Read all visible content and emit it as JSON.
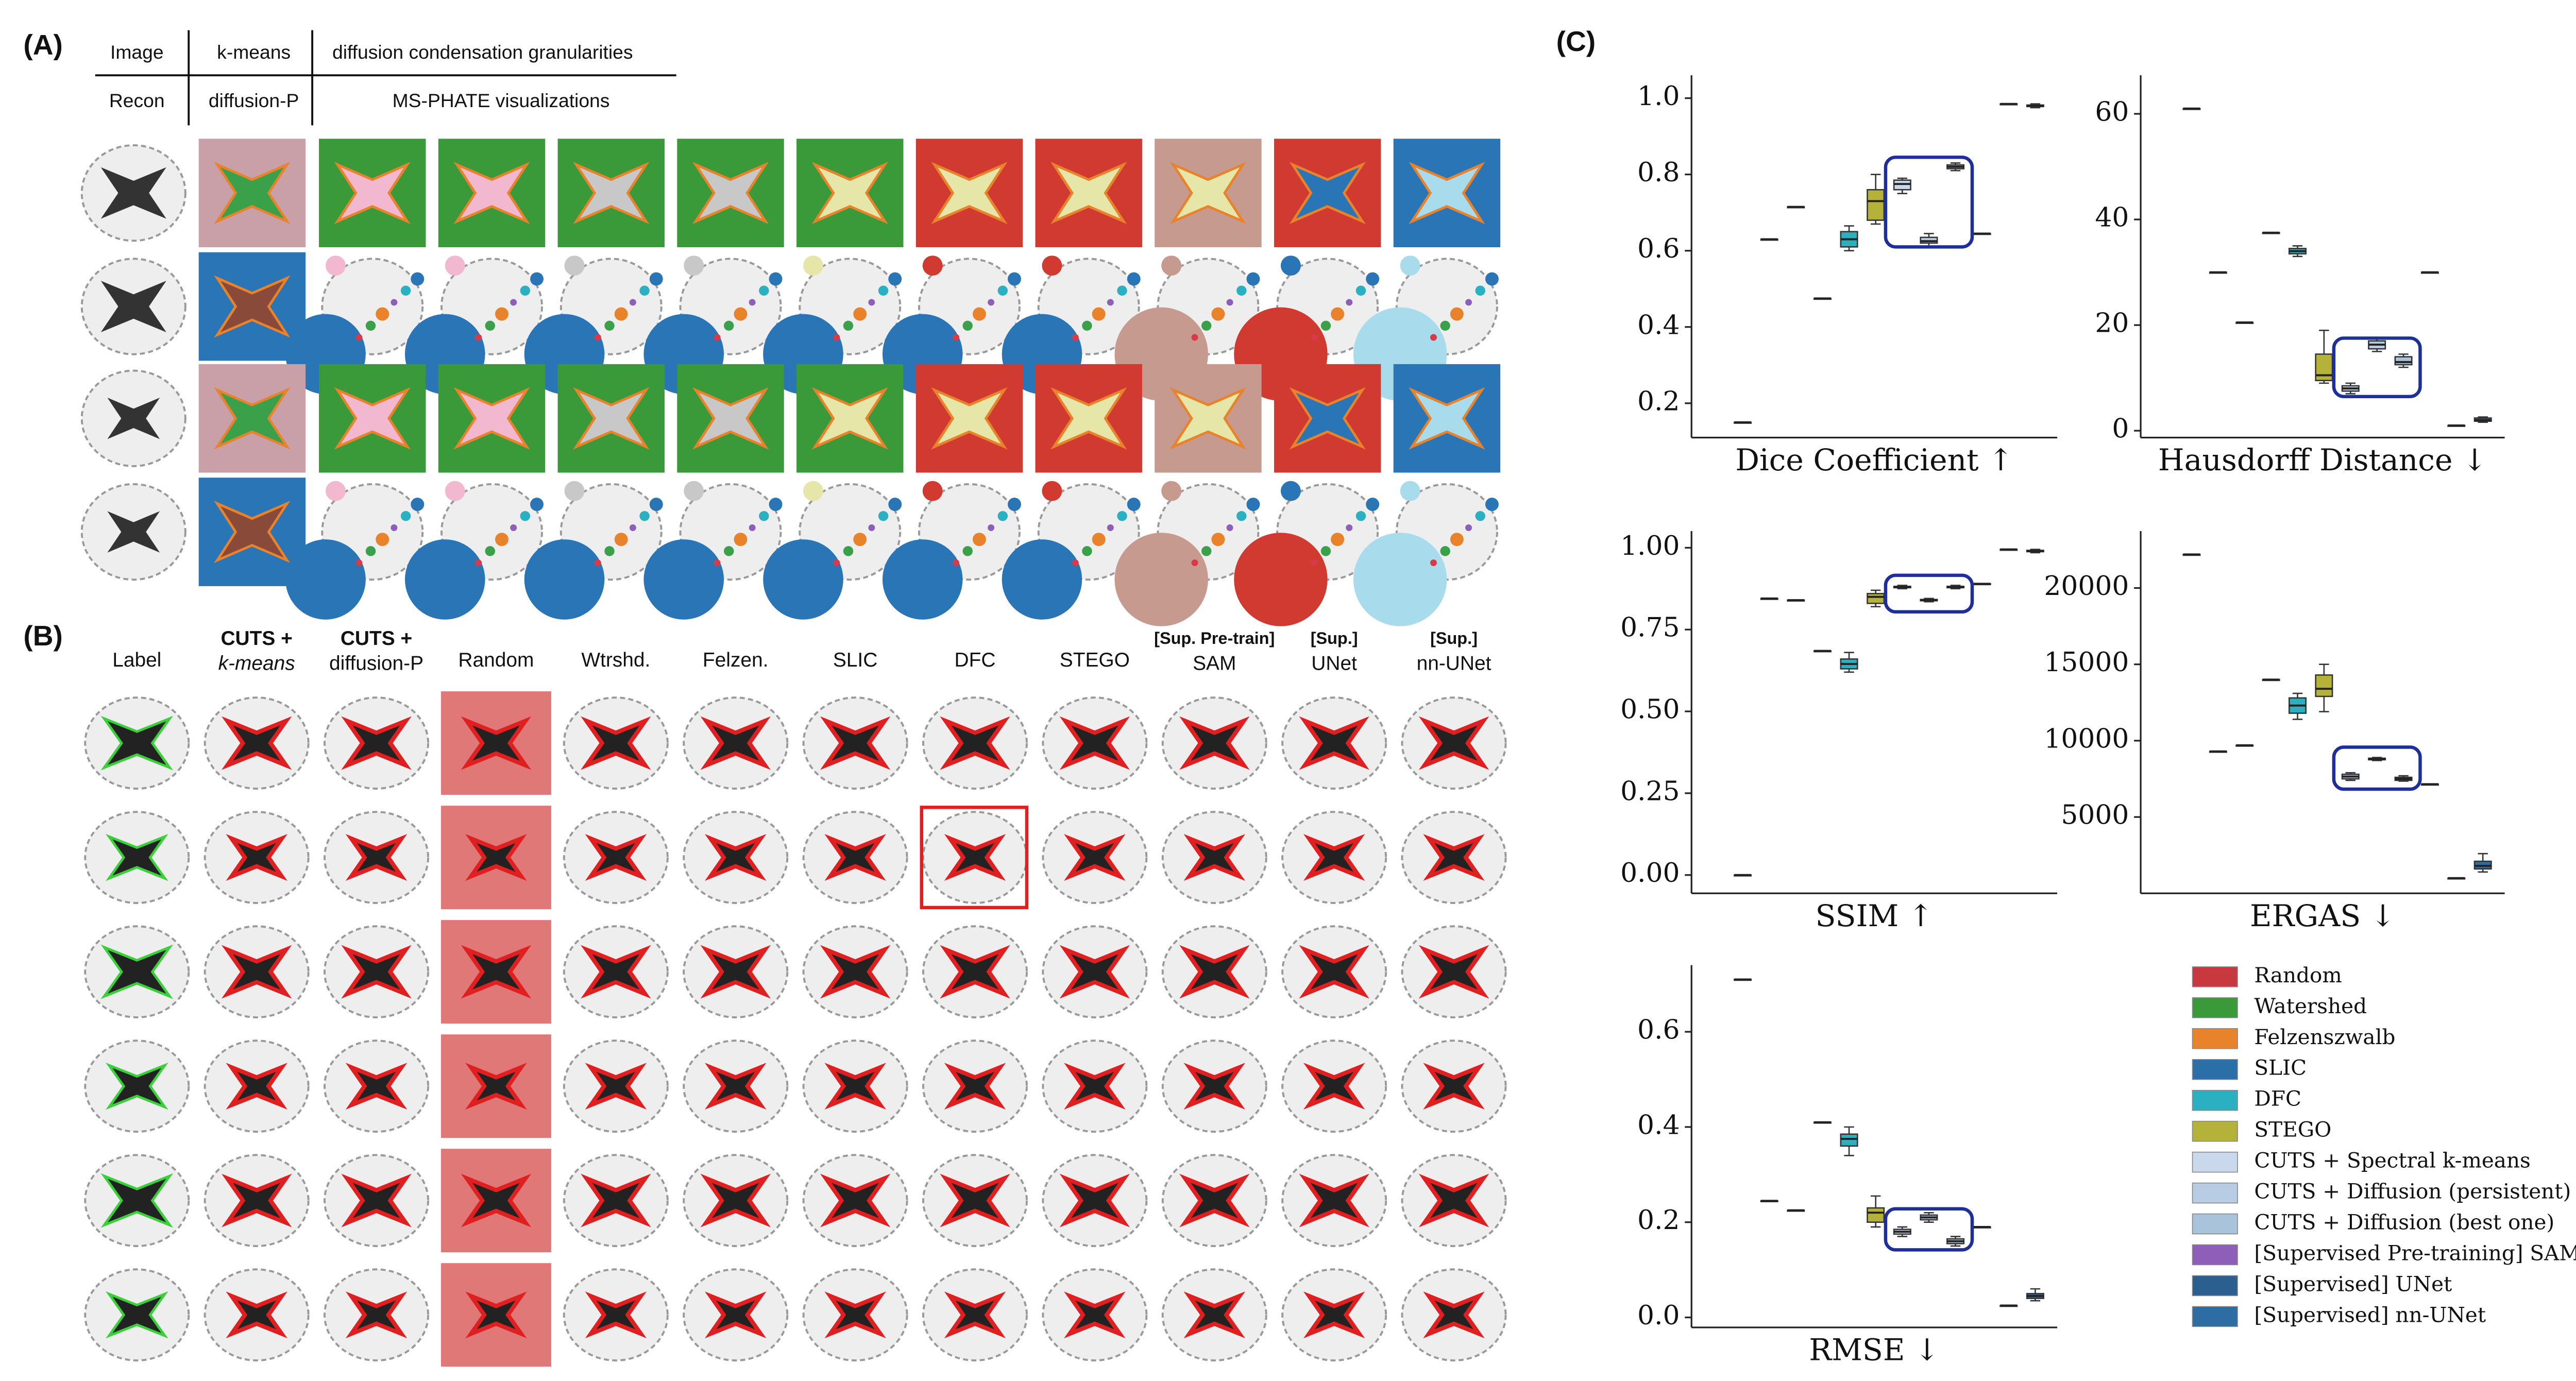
{
  "panel_a": {
    "label": "(A)",
    "header_top": [
      "Image",
      "k-means",
      "diffusion condensation granularities"
    ],
    "header_bottom": [
      "Recon",
      "diffusion-P",
      "MS-PHATE visualizations"
    ]
  },
  "panel_b": {
    "label": "(B)",
    "columns": [
      [
        "Label"
      ],
      [
        "CUTS +",
        "k-means"
      ],
      [
        "CUTS +",
        "diffusion-P"
      ],
      [
        "Random"
      ],
      [
        "Wtrshd."
      ],
      [
        "Felzen."
      ],
      [
        "SLIC"
      ],
      [
        "DFC"
      ],
      [
        "STEGO"
      ],
      [
        "[Sup. Pre-train]",
        "SAM"
      ],
      [
        "[Sup.]",
        "UNet"
      ],
      [
        "[Sup.]",
        "nn-UNet"
      ]
    ]
  },
  "panel_c": {
    "label": "(C)"
  },
  "legend": {
    "names": [
      "Random",
      "Watershed",
      "Felzenszwalb",
      "SLIC",
      "DFC",
      "STEGO",
      "CUTS + Spectral k-means",
      "CUTS + Diffusion (persistent)",
      "CUTS + Diffusion (best one)",
      "[Supervised Pre-training] SAM",
      "[Supervised] UNet",
      "[Supervised] nn-UNet"
    ],
    "colors": [
      "#c8393f",
      "#3a9a3a",
      "#e8822b",
      "#2a6fa8",
      "#2ab0c0",
      "#b5b23a",
      "#c9d8ec",
      "#b8cde4",
      "#a8c3da",
      "#8e5fb8",
      "#2a5f8f",
      "#2e6da4"
    ]
  },
  "chart_data": [
    {
      "type": "box",
      "xlabel": "Dice Coefficient ↑",
      "ylim": [
        0.11,
        1.06
      ],
      "yticks": [
        0.2,
        0.4,
        0.6,
        0.8,
        {
          "value": 1.0,
          "label": "1.0"
        }
      ],
      "boxes": [
        [
          0.15,
          0.15,
          0.15,
          0.15,
          0.15
        ],
        [
          0.63,
          0.63,
          0.63,
          0.63,
          0.63
        ],
        [
          0.715,
          0.715,
          0.715,
          0.715,
          0.715
        ],
        [
          0.475,
          0.475,
          0.475,
          0.475,
          0.475
        ],
        [
          0.6,
          0.61,
          0.63,
          0.65,
          0.665
        ],
        [
          0.67,
          0.68,
          0.73,
          0.76,
          0.8
        ],
        [
          0.75,
          0.76,
          0.775,
          0.785,
          0.79
        ],
        [
          0.61,
          0.62,
          0.625,
          0.635,
          0.645
        ],
        [
          0.81,
          0.815,
          0.82,
          0.825,
          0.83
        ],
        [
          0.645,
          0.645,
          0.645,
          0.645,
          0.645
        ],
        [
          0.985,
          0.985,
          0.985,
          0.985,
          0.985
        ],
        [
          0.975,
          0.978,
          0.98,
          0.982,
          0.985
        ]
      ]
    },
    {
      "type": "box",
      "xlabel": "Hausdorff Distance ↓",
      "ylim": [
        -1.3,
        67.3
      ],
      "yticks": [
        0,
        20,
        40,
        60
      ],
      "boxes": [
        [
          61,
          61,
          61,
          61,
          61
        ],
        [
          30,
          30,
          30,
          30,
          30
        ],
        [
          20.5,
          20.5,
          20.5,
          20.5,
          20.5
        ],
        [
          37.5,
          37.5,
          37.5,
          37.5,
          37.5
        ],
        [
          33,
          33.5,
          34,
          34.5,
          35
        ],
        [
          9,
          9.5,
          10.5,
          14.5,
          19
        ],
        [
          7,
          7.5,
          8,
          8.5,
          9
        ],
        [
          15,
          15.5,
          16.3,
          17,
          17.5
        ],
        [
          12,
          12.5,
          13,
          14,
          14.5
        ],
        [
          30,
          30,
          30,
          30,
          30
        ],
        [
          1,
          1,
          1,
          1,
          1
        ],
        [
          1.6,
          1.8,
          2,
          2.4,
          2.6
        ]
      ]
    },
    {
      "type": "box",
      "xlabel": "SSIM ↑",
      "ylim": [
        -0.056,
        1.051
      ],
      "yticks": [
        {
          "value": 0,
          "label": "0.00"
        },
        0.25,
        {
          "value": 0.5,
          "label": "0.50"
        },
        0.75,
        {
          "value": 1,
          "label": "1.00"
        }
      ],
      "boxes": [
        [
          0,
          0,
          0,
          0,
          0
        ],
        [
          0.845,
          0.845,
          0.845,
          0.845,
          0.845
        ],
        [
          0.84,
          0.84,
          0.84,
          0.84,
          0.84
        ],
        [
          0.685,
          0.685,
          0.685,
          0.685,
          0.685
        ],
        [
          0.62,
          0.63,
          0.645,
          0.66,
          0.68
        ],
        [
          0.82,
          0.83,
          0.85,
          0.86,
          0.87
        ],
        [
          0.875,
          0.878,
          0.88,
          0.882,
          0.885
        ],
        [
          0.835,
          0.838,
          0.84,
          0.842,
          0.845
        ],
        [
          0.875,
          0.878,
          0.88,
          0.882,
          0.885
        ],
        [
          0.89,
          0.89,
          0.89,
          0.89,
          0.89
        ],
        [
          0.995,
          0.995,
          0.995,
          0.995,
          0.995
        ],
        [
          0.985,
          0.988,
          0.99,
          0.992,
          0.995
        ]
      ]
    },
    {
      "type": "box",
      "xlabel": "ERGAS ↓",
      "ylim": [
        0,
        23730
      ],
      "yticks": [
        5000,
        10000,
        15000,
        20000
      ],
      "boxes": [
        [
          22200,
          22200,
          22200,
          22200,
          22200
        ],
        [
          9300,
          9300,
          9300,
          9300,
          9300
        ],
        [
          9700,
          9700,
          9700,
          9700,
          9700
        ],
        [
          14000,
          14000,
          14000,
          14000,
          14000
        ],
        [
          11400,
          11800,
          12300,
          12800,
          13100
        ],
        [
          11900,
          12900,
          13400,
          14300,
          15000
        ],
        [
          7400,
          7500,
          7650,
          7800,
          7900
        ],
        [
          8700,
          8750,
          8800,
          8850,
          8900
        ],
        [
          7350,
          7400,
          7500,
          7600,
          7700
        ],
        [
          7150,
          7150,
          7150,
          7150,
          7150
        ],
        [
          1000,
          1000,
          1000,
          1000,
          1000
        ],
        [
          1400,
          1600,
          1800,
          2100,
          2600
        ]
      ]
    },
    {
      "type": "box",
      "xlabel": "RMSE ↓",
      "ylim": [
        -0.021,
        0.74
      ],
      "yticks": [
        {
          "value": 0,
          "label": "0.0"
        },
        0.2,
        0.4,
        0.6
      ],
      "boxes": [
        [
          0.71,
          0.71,
          0.71,
          0.71,
          0.71
        ],
        [
          0.245,
          0.245,
          0.245,
          0.245,
          0.245
        ],
        [
          0.225,
          0.225,
          0.225,
          0.225,
          0.225
        ],
        [
          0.41,
          0.41,
          0.41,
          0.41,
          0.41
        ],
        [
          0.34,
          0.36,
          0.375,
          0.385,
          0.4
        ],
        [
          0.19,
          0.2,
          0.22,
          0.23,
          0.255
        ],
        [
          0.17,
          0.175,
          0.18,
          0.185,
          0.19
        ],
        [
          0.2,
          0.205,
          0.21,
          0.215,
          0.22
        ],
        [
          0.15,
          0.155,
          0.16,
          0.165,
          0.17
        ],
        [
          0.19,
          0.19,
          0.19,
          0.19,
          0.19
        ],
        [
          0.025,
          0.025,
          0.025,
          0.025,
          0.025
        ],
        [
          0.035,
          0.04,
          0.045,
          0.05,
          0.06
        ]
      ]
    }
  ]
}
